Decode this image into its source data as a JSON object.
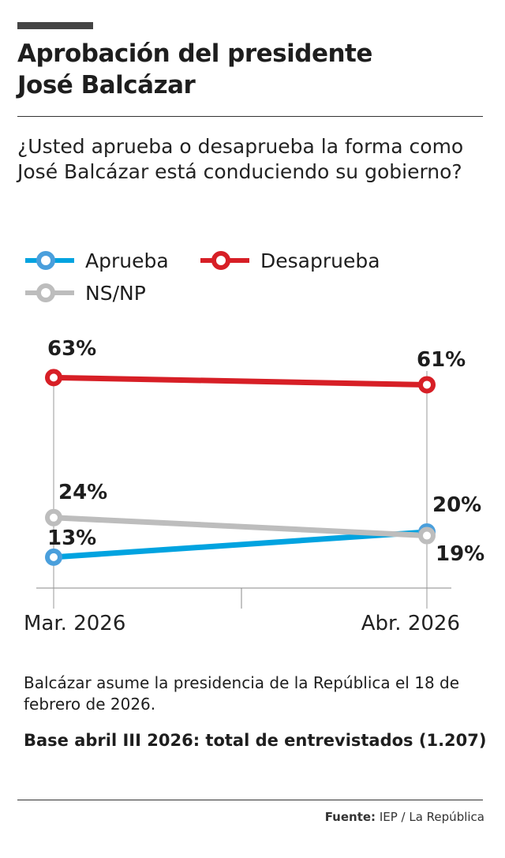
{
  "title_lines": [
    "Aprobación del presidente",
    "José Balcázar"
  ],
  "question": "¿Usted aprueba o desaprueba la forma como José Balcázar está conduciendo su gobierno?",
  "note": "Balcázar asume la presidencia de la República el 18 de febrero de 2026.",
  "base": "Base abril III 2026: total de entrevistados (1.207)",
  "source": {
    "label": "Fuente:",
    "value": " IEP / La República"
  },
  "chart_data": {
    "type": "line",
    "categories": [
      "Mar. 2026",
      "Abr. 2026"
    ],
    "ylim": [
      0,
      70
    ],
    "grid": false,
    "legend_placement": "top-left",
    "series": [
      {
        "name": "Aprueba",
        "values": [
          13,
          20
        ],
        "labels": [
          "13%",
          "20%"
        ],
        "color": "#00a3e0"
      },
      {
        "name": "Desaprueba",
        "values": [
          63,
          61
        ],
        "labels": [
          "63%",
          "61%"
        ],
        "color": "#d71f26"
      },
      {
        "name": "NS/NP",
        "values": [
          24,
          19
        ],
        "labels": [
          "24%",
          "19%"
        ],
        "color": "#bdbdbd"
      }
    ]
  }
}
